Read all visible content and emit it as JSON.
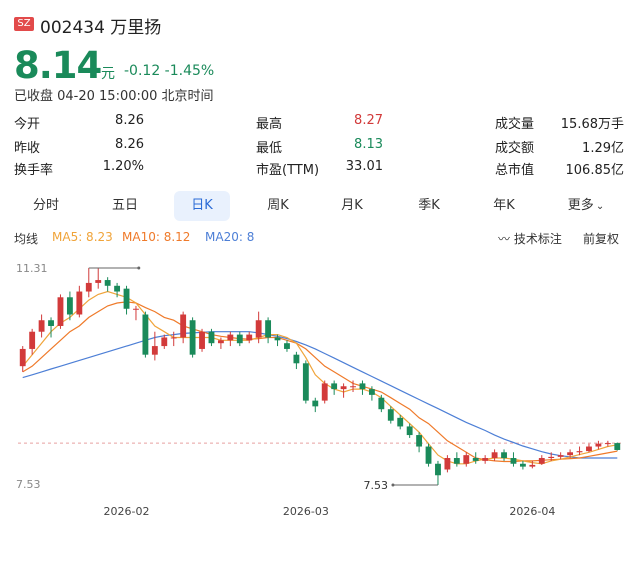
{
  "header": {
    "market_badge": "SZ",
    "code_name": "002434 万里扬",
    "price": "8.14",
    "unit": "元",
    "change": "-0.12 -1.45%",
    "status": "已收盘 04-20 15:00:00 北京时间"
  },
  "quote": [
    {
      "l1": "今开",
      "v1": "8.26",
      "l2": "最高",
      "v2": "8.27",
      "c2": "#d23a3a",
      "l3": "成交量",
      "v3": "15.68万手"
    },
    {
      "l1": "昨收",
      "v1": "8.26",
      "l2": "最低",
      "v2": "8.13",
      "c2": "#1a8a5a",
      "l3": "成交额",
      "v3": "1.29亿"
    },
    {
      "l1": "换手率",
      "v1": "1.20%",
      "l2": "市盈(TTM)",
      "v2": "33.01",
      "c2": "#222222",
      "l3": "总市值",
      "v3": "106.85亿"
    }
  ],
  "tabs": [
    "分时",
    "五日",
    "日K",
    "周K",
    "月K",
    "季K",
    "年K",
    "更多"
  ],
  "active_tab": "日K",
  "ma_bar": {
    "label": "均线",
    "ma5": "MA5: 8.23",
    "ma10": "MA10: 8.12",
    "ma20": "MA20: 8",
    "tech": "技术标注",
    "adjust": "前复权"
  },
  "colors": {
    "up": "#d23a3a",
    "down": "#1a8a5a",
    "ma5": "#f0a43a",
    "ma10": "#ef7a2a",
    "ma20": "#4d7fd6",
    "accent": "#2b6bd6"
  },
  "chart_data": {
    "type": "candlestick",
    "y_top_label": "11.31",
    "y_bottom_label": "7.53",
    "high_annotation": "11.31",
    "low_annotation": "7.53",
    "ylim": [
      7.53,
      11.31
    ],
    "x_ticks": [
      {
        "label": "2026-02",
        "index": 11
      },
      {
        "label": "2026-03",
        "index": 30
      },
      {
        "label": "2026-04",
        "index": 54
      }
    ],
    "reference_price": 8.26,
    "candles": [
      [
        9.6,
        9.9,
        9.95,
        9.5
      ],
      [
        9.9,
        10.2,
        10.25,
        9.8
      ],
      [
        10.2,
        10.4,
        10.5,
        10.1
      ],
      [
        10.4,
        10.3,
        10.45,
        10.1
      ],
      [
        10.3,
        10.8,
        10.85,
        10.25
      ],
      [
        10.8,
        10.5,
        10.9,
        10.4
      ],
      [
        10.5,
        10.9,
        11.0,
        10.45
      ],
      [
        10.9,
        11.05,
        11.31,
        10.8
      ],
      [
        11.05,
        11.1,
        11.31,
        10.95
      ],
      [
        11.1,
        11.0,
        11.15,
        10.9
      ],
      [
        11.0,
        10.9,
        11.05,
        10.8
      ],
      [
        10.95,
        10.6,
        11.0,
        10.5
      ],
      [
        10.6,
        10.6,
        10.65,
        10.4
      ],
      [
        10.5,
        9.8,
        10.55,
        9.75
      ],
      [
        9.8,
        9.95,
        10.2,
        9.7
      ],
      [
        9.95,
        10.1,
        10.15,
        9.9
      ],
      [
        10.1,
        10.1,
        10.2,
        9.95
      ],
      [
        10.1,
        10.5,
        10.55,
        10.0
      ],
      [
        10.4,
        9.8,
        10.45,
        9.75
      ],
      [
        9.9,
        10.2,
        10.25,
        9.85
      ],
      [
        10.2,
        10.0,
        10.25,
        9.95
      ],
      [
        10.0,
        10.05,
        10.1,
        9.9
      ],
      [
        10.05,
        10.15,
        10.2,
        9.95
      ],
      [
        10.15,
        10.0,
        10.2,
        9.95
      ],
      [
        10.05,
        10.15,
        10.2,
        10.0
      ],
      [
        10.1,
        10.4,
        10.55,
        10.0
      ],
      [
        10.4,
        10.1,
        10.45,
        10.0
      ],
      [
        10.1,
        10.05,
        10.15,
        9.95
      ],
      [
        10.0,
        9.9,
        10.05,
        9.85
      ],
      [
        9.8,
        9.65,
        9.85,
        9.55
      ],
      [
        9.65,
        9.0,
        9.7,
        8.95
      ],
      [
        9.0,
        8.9,
        9.05,
        8.8
      ],
      [
        9.0,
        9.3,
        9.35,
        8.95
      ],
      [
        9.3,
        9.2,
        9.35,
        9.1
      ],
      [
        9.2,
        9.25,
        9.3,
        9.05
      ],
      [
        9.25,
        9.25,
        9.35,
        9.15
      ],
      [
        9.3,
        9.2,
        9.35,
        9.1
      ],
      [
        9.2,
        9.1,
        9.25,
        9.0
      ],
      [
        9.05,
        8.85,
        9.1,
        8.8
      ],
      [
        8.85,
        8.65,
        8.9,
        8.6
      ],
      [
        8.7,
        8.55,
        8.75,
        8.5
      ],
      [
        8.55,
        8.4,
        8.6,
        8.35
      ],
      [
        8.4,
        8.2,
        8.45,
        8.1
      ],
      [
        8.2,
        7.9,
        8.25,
        7.85
      ],
      [
        7.9,
        7.7,
        7.95,
        7.53
      ],
      [
        7.8,
        8.0,
        8.05,
        7.75
      ],
      [
        8.0,
        7.9,
        8.1,
        7.85
      ],
      [
        7.9,
        8.05,
        8.1,
        7.85
      ],
      [
        8.0,
        7.95,
        8.1,
        7.9
      ],
      [
        7.95,
        8.0,
        8.05,
        7.9
      ],
      [
        8.0,
        8.1,
        8.15,
        7.95
      ],
      [
        8.1,
        8.0,
        8.15,
        7.95
      ],
      [
        8.0,
        7.9,
        8.1,
        7.85
      ],
      [
        7.9,
        7.85,
        7.95,
        7.8
      ],
      [
        7.85,
        7.88,
        7.95,
        7.82
      ],
      [
        7.9,
        8.0,
        8.05,
        7.88
      ],
      [
        8.0,
        8.02,
        8.1,
        7.95
      ],
      [
        8.02,
        8.05,
        8.1,
        7.98
      ],
      [
        8.05,
        8.1,
        8.15,
        8.0
      ],
      [
        8.1,
        8.12,
        8.2,
        8.05
      ],
      [
        8.12,
        8.2,
        8.25,
        8.1
      ],
      [
        8.2,
        8.25,
        8.3,
        8.15
      ],
      [
        8.25,
        8.26,
        8.3,
        8.2
      ],
      [
        8.26,
        8.14,
        8.27,
        8.13
      ]
    ],
    "ma5_line": [
      9.6,
      9.8,
      10.0,
      10.2,
      10.35,
      10.45,
      10.6,
      10.75,
      10.85,
      10.9,
      10.85,
      10.8,
      10.7,
      10.5,
      10.3,
      10.2,
      10.1,
      10.1,
      10.1,
      10.1,
      10.1,
      10.05,
      10.05,
      10.05,
      10.05,
      10.1,
      10.15,
      10.15,
      10.1,
      10.0,
      9.75,
      9.45,
      9.3,
      9.2,
      9.15,
      9.2,
      9.2,
      9.15,
      9.05,
      8.9,
      8.75,
      8.6,
      8.45,
      8.25,
      8.05,
      7.95,
      7.9,
      7.9,
      7.95,
      7.98,
      8.0,
      8.0,
      7.98,
      7.95,
      7.92,
      7.9,
      7.95,
      7.98,
      8.02,
      8.06,
      8.1,
      8.15,
      8.2,
      8.23
    ],
    "ma10_line": [
      9.5,
      9.6,
      9.75,
      9.9,
      10.05,
      10.2,
      10.3,
      10.45,
      10.55,
      10.65,
      10.7,
      10.72,
      10.7,
      10.62,
      10.55,
      10.45,
      10.4,
      10.3,
      10.25,
      10.2,
      10.15,
      10.12,
      10.1,
      10.08,
      10.07,
      10.08,
      10.1,
      10.1,
      10.05,
      10.0,
      9.9,
      9.75,
      9.6,
      9.5,
      9.4,
      9.3,
      9.25,
      9.2,
      9.15,
      9.05,
      8.95,
      8.85,
      8.7,
      8.6,
      8.45,
      8.3,
      8.2,
      8.1,
      8.0,
      7.97,
      7.95,
      7.94,
      7.94,
      7.95,
      7.95,
      7.96,
      7.97,
      7.98,
      7.99,
      8.0,
      8.03,
      8.06,
      8.09,
      8.12
    ],
    "ma20_line": [
      9.4,
      9.45,
      9.5,
      9.55,
      9.6,
      9.65,
      9.7,
      9.75,
      9.8,
      9.85,
      9.9,
      9.95,
      10.0,
      10.05,
      10.1,
      10.13,
      10.15,
      10.17,
      10.18,
      10.19,
      10.2,
      10.2,
      10.2,
      10.2,
      10.2,
      10.18,
      10.15,
      10.12,
      10.08,
      10.03,
      9.97,
      9.9,
      9.82,
      9.74,
      9.66,
      9.58,
      9.5,
      9.42,
      9.34,
      9.26,
      9.18,
      9.1,
      9.02,
      8.94,
      8.86,
      8.78,
      8.7,
      8.62,
      8.55,
      8.48,
      8.4,
      8.33,
      8.27,
      8.21,
      8.16,
      8.11,
      8.07,
      8.04,
      8.02,
      8.0,
      8.0,
      8.0,
      8.0,
      8.0
    ]
  }
}
